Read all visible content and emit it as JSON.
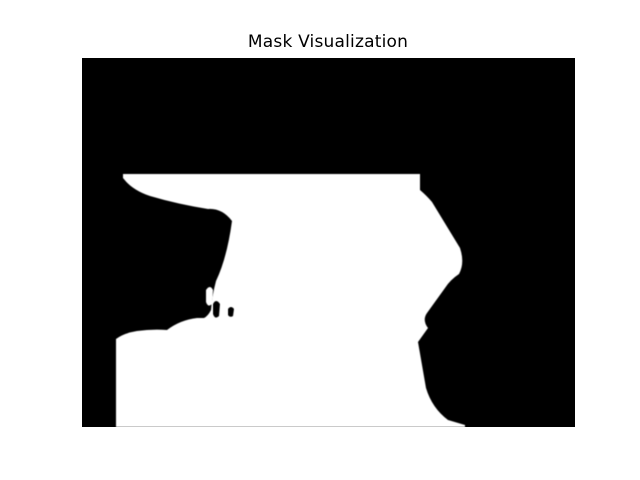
{
  "figure": {
    "title": "Mask Visualization",
    "background_color": "#ffffff"
  },
  "mask": {
    "background_color": "#000000",
    "foreground_color": "#ffffff",
    "axes_shown": false
  }
}
